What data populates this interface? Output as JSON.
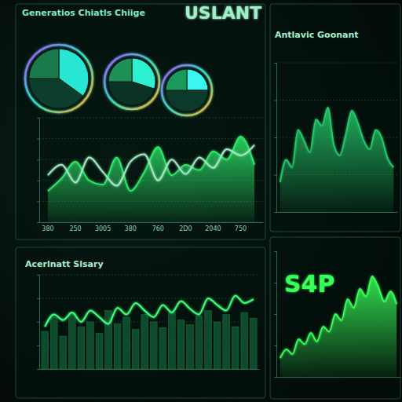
{
  "header": {
    "title": "USLANT"
  },
  "chart_data": [
    {
      "type": "pie",
      "title": "Generatios Chiatls Chiige",
      "values": [
        35,
        40,
        25
      ],
      "colors": [
        "#27e6d2",
        "#0d3d2c",
        "#1b7a4c"
      ]
    },
    {
      "type": "pie",
      "values": [
        30,
        45,
        25
      ],
      "colors": [
        "#2cf0d0",
        "#0a3326",
        "#1e8f55"
      ]
    },
    {
      "type": "pie",
      "values": [
        25,
        50,
        25
      ],
      "colors": [
        "#3af5f0",
        "#0b3a2a",
        "#1a9a5a"
      ]
    },
    {
      "type": "line",
      "categories": [
        "380",
        null,
        "250",
        null,
        "3005",
        null,
        "380",
        null,
        "760",
        null,
        "2D0",
        null,
        "2040",
        null,
        "750",
        null
      ],
      "series": [
        {
          "type": "area",
          "color": "#2ee86a",
          "values": [
            30,
            42,
            58,
            40,
            36,
            62,
            30,
            48,
            72,
            45,
            55,
            50,
            68,
            60,
            82,
            55
          ]
        },
        {
          "type": "line",
          "color": "#9fe8c0",
          "values": [
            45,
            55,
            38,
            62,
            48,
            35,
            58,
            65,
            40,
            60,
            46,
            62,
            52,
            70,
            64,
            74
          ]
        }
      ],
      "ylim": [
        0,
        100
      ],
      "yticks": [
        0,
        20,
        40,
        60,
        80,
        100
      ],
      "grid": true,
      "tick_labels": "x"
    },
    {
      "type": "line",
      "title": "Acerlnatt Slsary",
      "categories": [
        null,
        null,
        null,
        null,
        null,
        null,
        null,
        null,
        null,
        null,
        null,
        null,
        null,
        null,
        null,
        null,
        null,
        null,
        null,
        null,
        null,
        null,
        null,
        null
      ],
      "series": [
        {
          "type": "bar",
          "color": "#0e4a2c",
          "values": [
            40,
            55,
            35,
            60,
            45,
            50,
            38,
            62,
            48,
            55,
            42,
            58,
            50,
            44,
            60,
            52,
            47,
            56,
            62,
            50,
            58,
            45,
            60,
            54
          ]
        },
        {
          "type": "line",
          "color": "#3dff7a",
          "values": [
            45,
            58,
            52,
            60,
            50,
            62,
            55,
            48,
            65,
            58,
            70,
            62,
            55,
            68,
            60,
            72,
            64,
            58,
            75,
            68,
            62,
            78,
            70,
            74
          ]
        }
      ],
      "ylim": [
        0,
        100
      ],
      "yticks": [
        0,
        25,
        50,
        75,
        100
      ],
      "grid": true,
      "tick_labels": false
    },
    {
      "type": "area",
      "title": "Antlavic Goonant",
      "color": "#25c96a",
      "categories": [
        null,
        null,
        null,
        null,
        null,
        null,
        null,
        null,
        null,
        null,
        null,
        null,
        null,
        null,
        null,
        null,
        null,
        null,
        null,
        null
      ],
      "values": [
        20,
        35,
        30,
        55,
        48,
        40,
        62,
        58,
        70,
        45,
        38,
        52,
        68,
        60,
        48,
        42,
        55,
        50,
        36,
        30
      ],
      "ylim": [
        0,
        100
      ],
      "yticks": [
        0,
        25,
        50,
        75,
        100
      ],
      "grid": true,
      "tick_labels": false
    },
    {
      "type": "area",
      "annotation": "S4P",
      "color": "#39ff5a",
      "categories": [
        null,
        null,
        null,
        null,
        null,
        null,
        null,
        null,
        null,
        null,
        null,
        null,
        null,
        null,
        null,
        null,
        null,
        null,
        null,
        null
      ],
      "values": [
        15,
        22,
        18,
        30,
        26,
        35,
        28,
        40,
        36,
        50,
        45,
        62,
        55,
        70,
        64,
        80,
        72,
        60,
        68,
        58
      ],
      "ylim": [
        0,
        100
      ],
      "yticks": [
        0,
        25,
        50,
        75,
        100
      ],
      "grid": false,
      "tick_labels": false
    }
  ]
}
